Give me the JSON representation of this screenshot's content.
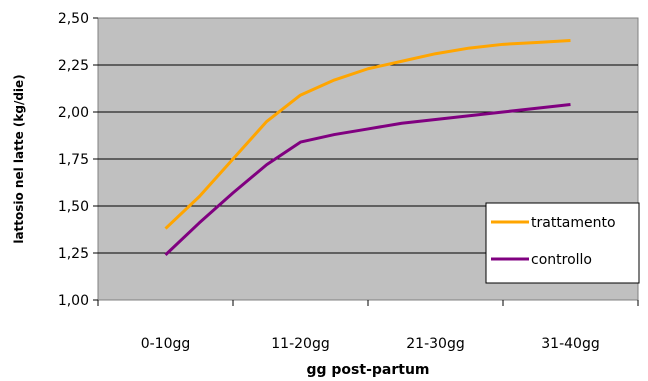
{
  "chart_data": {
    "type": "line",
    "categories": [
      "0-10gg",
      "11-20gg",
      "21-30gg",
      "31-40gg"
    ],
    "xlabel": "gg post-partum",
    "ylabel": "lattosio nel latte (kg/die)",
    "ylim": [
      1.0,
      2.5
    ],
    "yticks": [
      "1,00",
      "1,25",
      "1,50",
      "1,75",
      "2,00",
      "2,25",
      "2,50"
    ],
    "grid": true,
    "legend_position": "right",
    "series": [
      {
        "name": "trattamento",
        "color": "#FFA500",
        "x": [
          0,
          0.25,
          0.5,
          0.75,
          1,
          1.25,
          1.5,
          1.75,
          2,
          2.25,
          2.5,
          2.75,
          3
        ],
        "values": [
          1.38,
          1.55,
          1.75,
          1.95,
          2.09,
          2.17,
          2.23,
          2.27,
          2.31,
          2.34,
          2.36,
          2.37,
          2.38
        ]
      },
      {
        "name": "controllo",
        "color": "#800080",
        "x": [
          0,
          0.25,
          0.5,
          0.75,
          1,
          1.25,
          1.5,
          1.75,
          2,
          2.25,
          2.5,
          2.75,
          3
        ],
        "values": [
          1.24,
          1.41,
          1.57,
          1.72,
          1.84,
          1.88,
          1.91,
          1.94,
          1.96,
          1.98,
          2.0,
          2.02,
          2.04
        ]
      }
    ]
  }
}
